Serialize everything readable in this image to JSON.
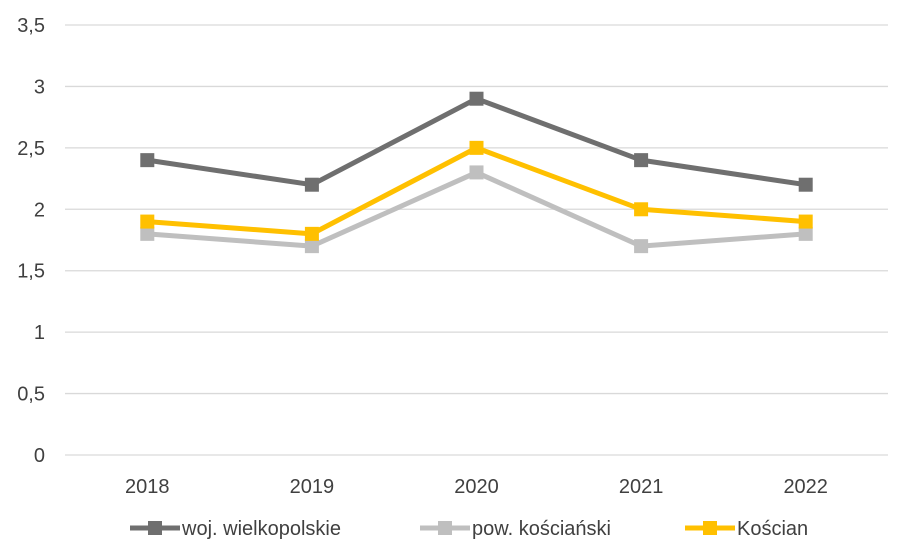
{
  "chart_data": {
    "type": "line",
    "categories": [
      "2018",
      "2019",
      "2020",
      "2021",
      "2022"
    ],
    "ylim": [
      0,
      3.5
    ],
    "yticks": [
      "0",
      "0,5",
      "1",
      "1,5",
      "2",
      "2,5",
      "3",
      "3,5"
    ],
    "ytick_values": [
      0,
      0.5,
      1,
      1.5,
      2,
      2.5,
      3,
      3.5
    ],
    "grid": true,
    "legend_position": "bottom",
    "series": [
      {
        "name": "woj. wielkopolskie",
        "color": "#6f6f6f",
        "values": [
          2.4,
          2.2,
          2.9,
          2.4,
          2.2
        ]
      },
      {
        "name": "pow. kościański",
        "color": "#bfbfbf",
        "values": [
          1.8,
          1.7,
          2.3,
          1.7,
          1.8
        ]
      },
      {
        "name": "Kościan",
        "color": "#ffc000",
        "values": [
          1.9,
          1.8,
          2.5,
          2.0,
          1.9
        ]
      }
    ]
  }
}
